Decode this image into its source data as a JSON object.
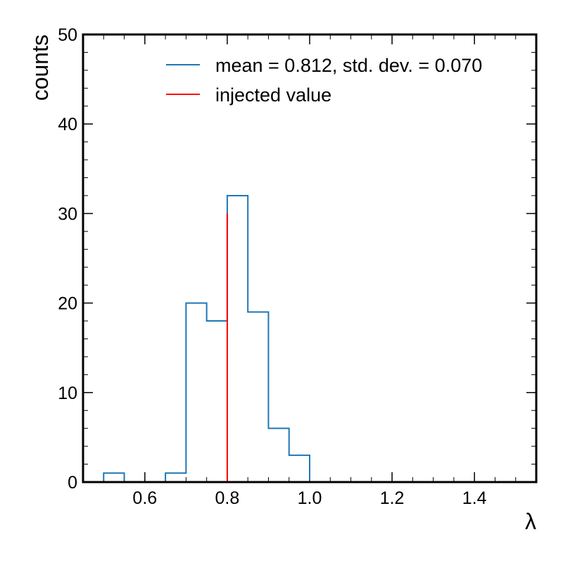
{
  "chart_data": {
    "type": "histogram",
    "xlabel": "λ",
    "ylabel": "counts",
    "xlim": [
      0.45,
      1.55
    ],
    "ylim": [
      0,
      50
    ],
    "bin_width": 0.05,
    "bins": [
      {
        "x0": 0.5,
        "x1": 0.55,
        "count": 1
      },
      {
        "x0": 0.55,
        "x1": 0.6,
        "count": 0
      },
      {
        "x0": 0.6,
        "x1": 0.65,
        "count": 0
      },
      {
        "x0": 0.65,
        "x1": 0.7,
        "count": 1
      },
      {
        "x0": 0.7,
        "x1": 0.75,
        "count": 20
      },
      {
        "x0": 0.75,
        "x1": 0.8,
        "count": 18
      },
      {
        "x0": 0.8,
        "x1": 0.85,
        "count": 32
      },
      {
        "x0": 0.85,
        "x1": 0.9,
        "count": 19
      },
      {
        "x0": 0.9,
        "x1": 0.95,
        "count": 6
      },
      {
        "x0": 0.95,
        "x1": 1.0,
        "count": 3
      }
    ],
    "injected_value": {
      "x": 0.8,
      "y_top": 30
    },
    "x_ticks": [
      "0.6",
      "0.8",
      "1.0",
      "1.2",
      "1.4"
    ],
    "x_tick_values": [
      0.6,
      0.8,
      1.0,
      1.2,
      1.4
    ],
    "y_ticks": [
      "0",
      "10",
      "20",
      "30",
      "40",
      "50"
    ],
    "y_tick_values": [
      0,
      10,
      20,
      30,
      40,
      50
    ],
    "legend_placement": "top-right",
    "legend": [
      {
        "label": "mean = 0.812, std. dev. = 0.070",
        "color": "#1f77b4"
      },
      {
        "label": "injected value",
        "color": "#ff0000"
      }
    ],
    "grid": false
  }
}
